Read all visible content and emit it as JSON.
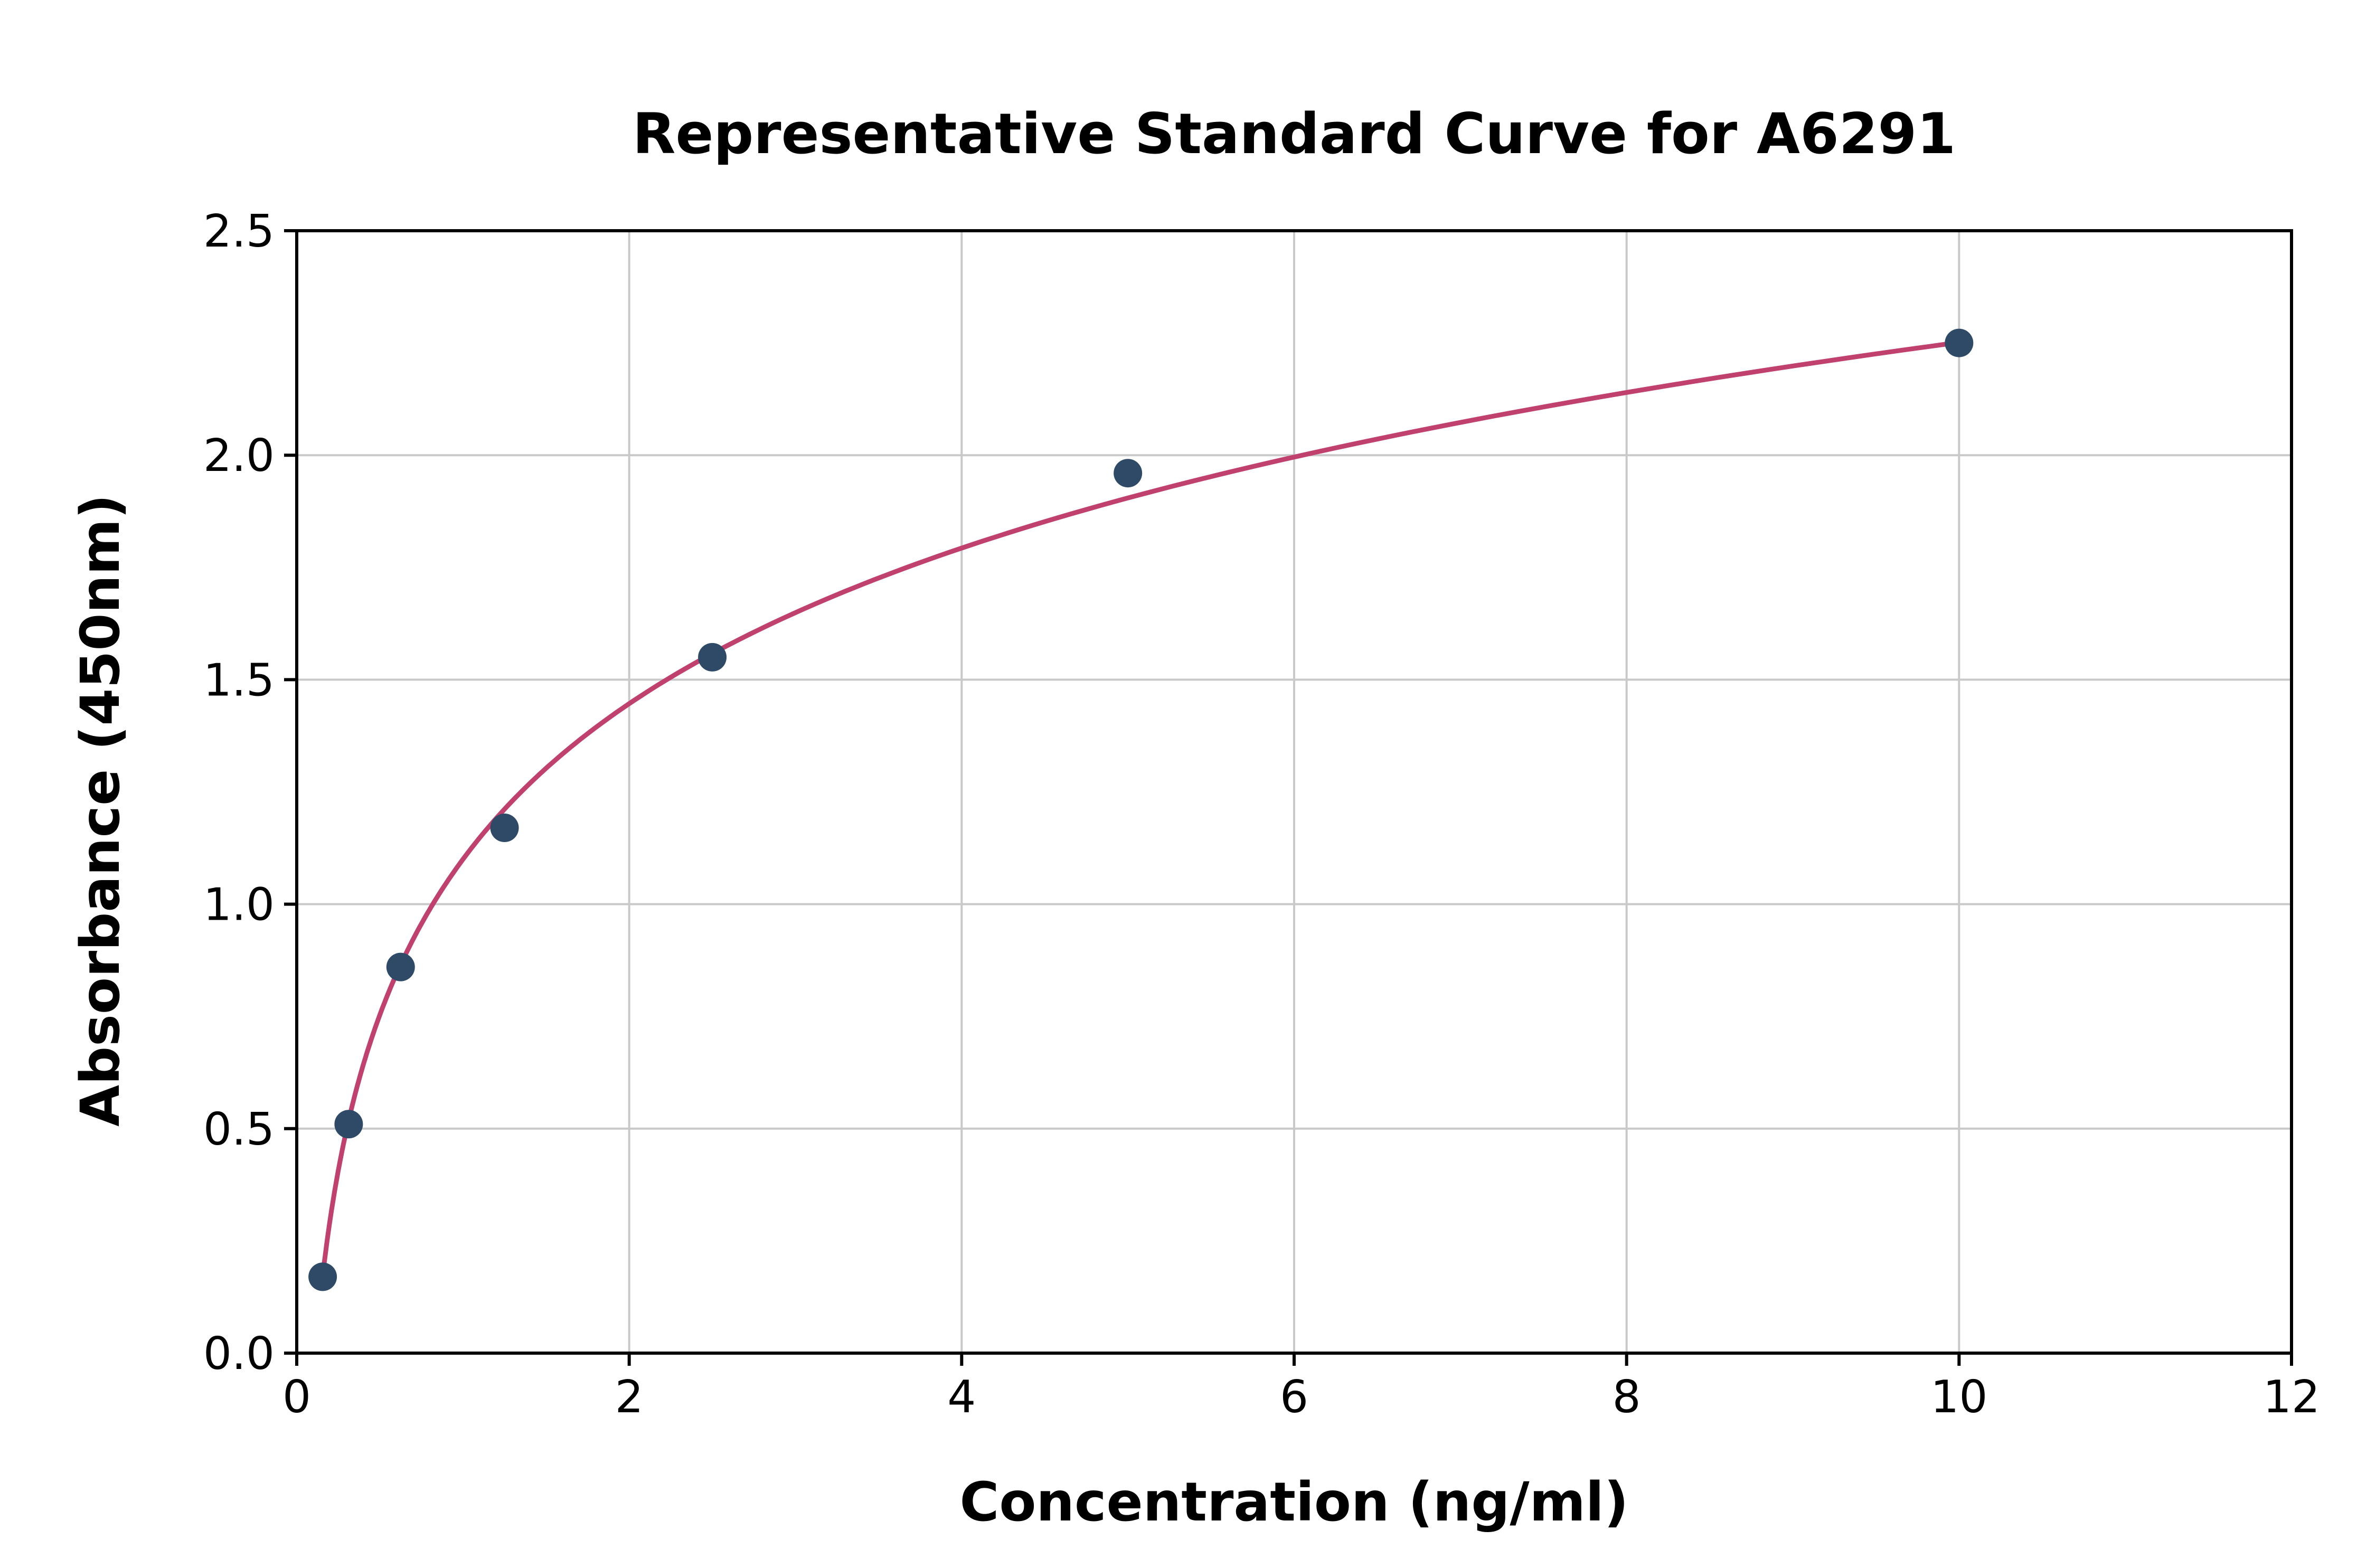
{
  "chart_data": {
    "type": "scatter",
    "title": "Representative Standard Curve for A6291",
    "xlabel": "Concentration (ng/ml)",
    "ylabel": "Absorbance (450nm)",
    "xlim": [
      0,
      12
    ],
    "ylim": [
      0,
      2.5
    ],
    "x_ticks": [
      0,
      2,
      4,
      6,
      8,
      10,
      12
    ],
    "x_tick_labels": [
      "0",
      "2",
      "4",
      "6",
      "8",
      "10",
      "12"
    ],
    "y_ticks": [
      0.0,
      0.5,
      1.0,
      1.5,
      2.0,
      2.5
    ],
    "y_tick_labels": [
      "0.0",
      "0.5",
      "1.0",
      "1.5",
      "2.0",
      "2.5"
    ],
    "grid": true,
    "legend": "none",
    "points": [
      {
        "x": 0.156,
        "y": 0.17
      },
      {
        "x": 0.3125,
        "y": 0.51
      },
      {
        "x": 0.625,
        "y": 0.86
      },
      {
        "x": 1.25,
        "y": 1.17
      },
      {
        "x": 2.5,
        "y": 1.55
      },
      {
        "x": 5.0,
        "y": 1.96
      },
      {
        "x": 10.0,
        "y": 2.25
      }
    ],
    "curve_fit": {
      "type": "logarithmic",
      "a": 0.5,
      "b": 1.1,
      "x_start": 0.156,
      "x_end": 10.0,
      "formula": "y = a*ln(x) + b"
    },
    "colors": {
      "point": "#2e4a66",
      "curve": "#c0406e",
      "grid": "#c9c9c9",
      "axis": "#000000",
      "text": "#000000",
      "background": "#ffffff"
    }
  }
}
